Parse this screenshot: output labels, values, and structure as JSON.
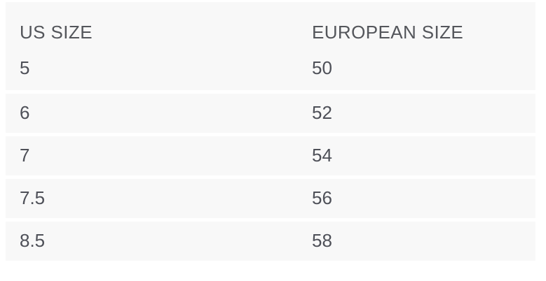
{
  "size_chart": {
    "columns": [
      {
        "key": "us",
        "label": "US SIZE"
      },
      {
        "key": "eu",
        "label": "EUROPEAN SIZE"
      }
    ],
    "rows": [
      {
        "us": "5",
        "eu": "50"
      },
      {
        "us": "6",
        "eu": "52"
      },
      {
        "us": "7",
        "eu": "54"
      },
      {
        "us": "7.5",
        "eu": "56"
      },
      {
        "us": "8.5",
        "eu": "58"
      }
    ],
    "colors": {
      "row_background": "#f8f8f8",
      "separator": "#ffffff",
      "header_text": "#54565b",
      "cell_text": "#4e5058",
      "page_background": "#ffffff"
    }
  }
}
